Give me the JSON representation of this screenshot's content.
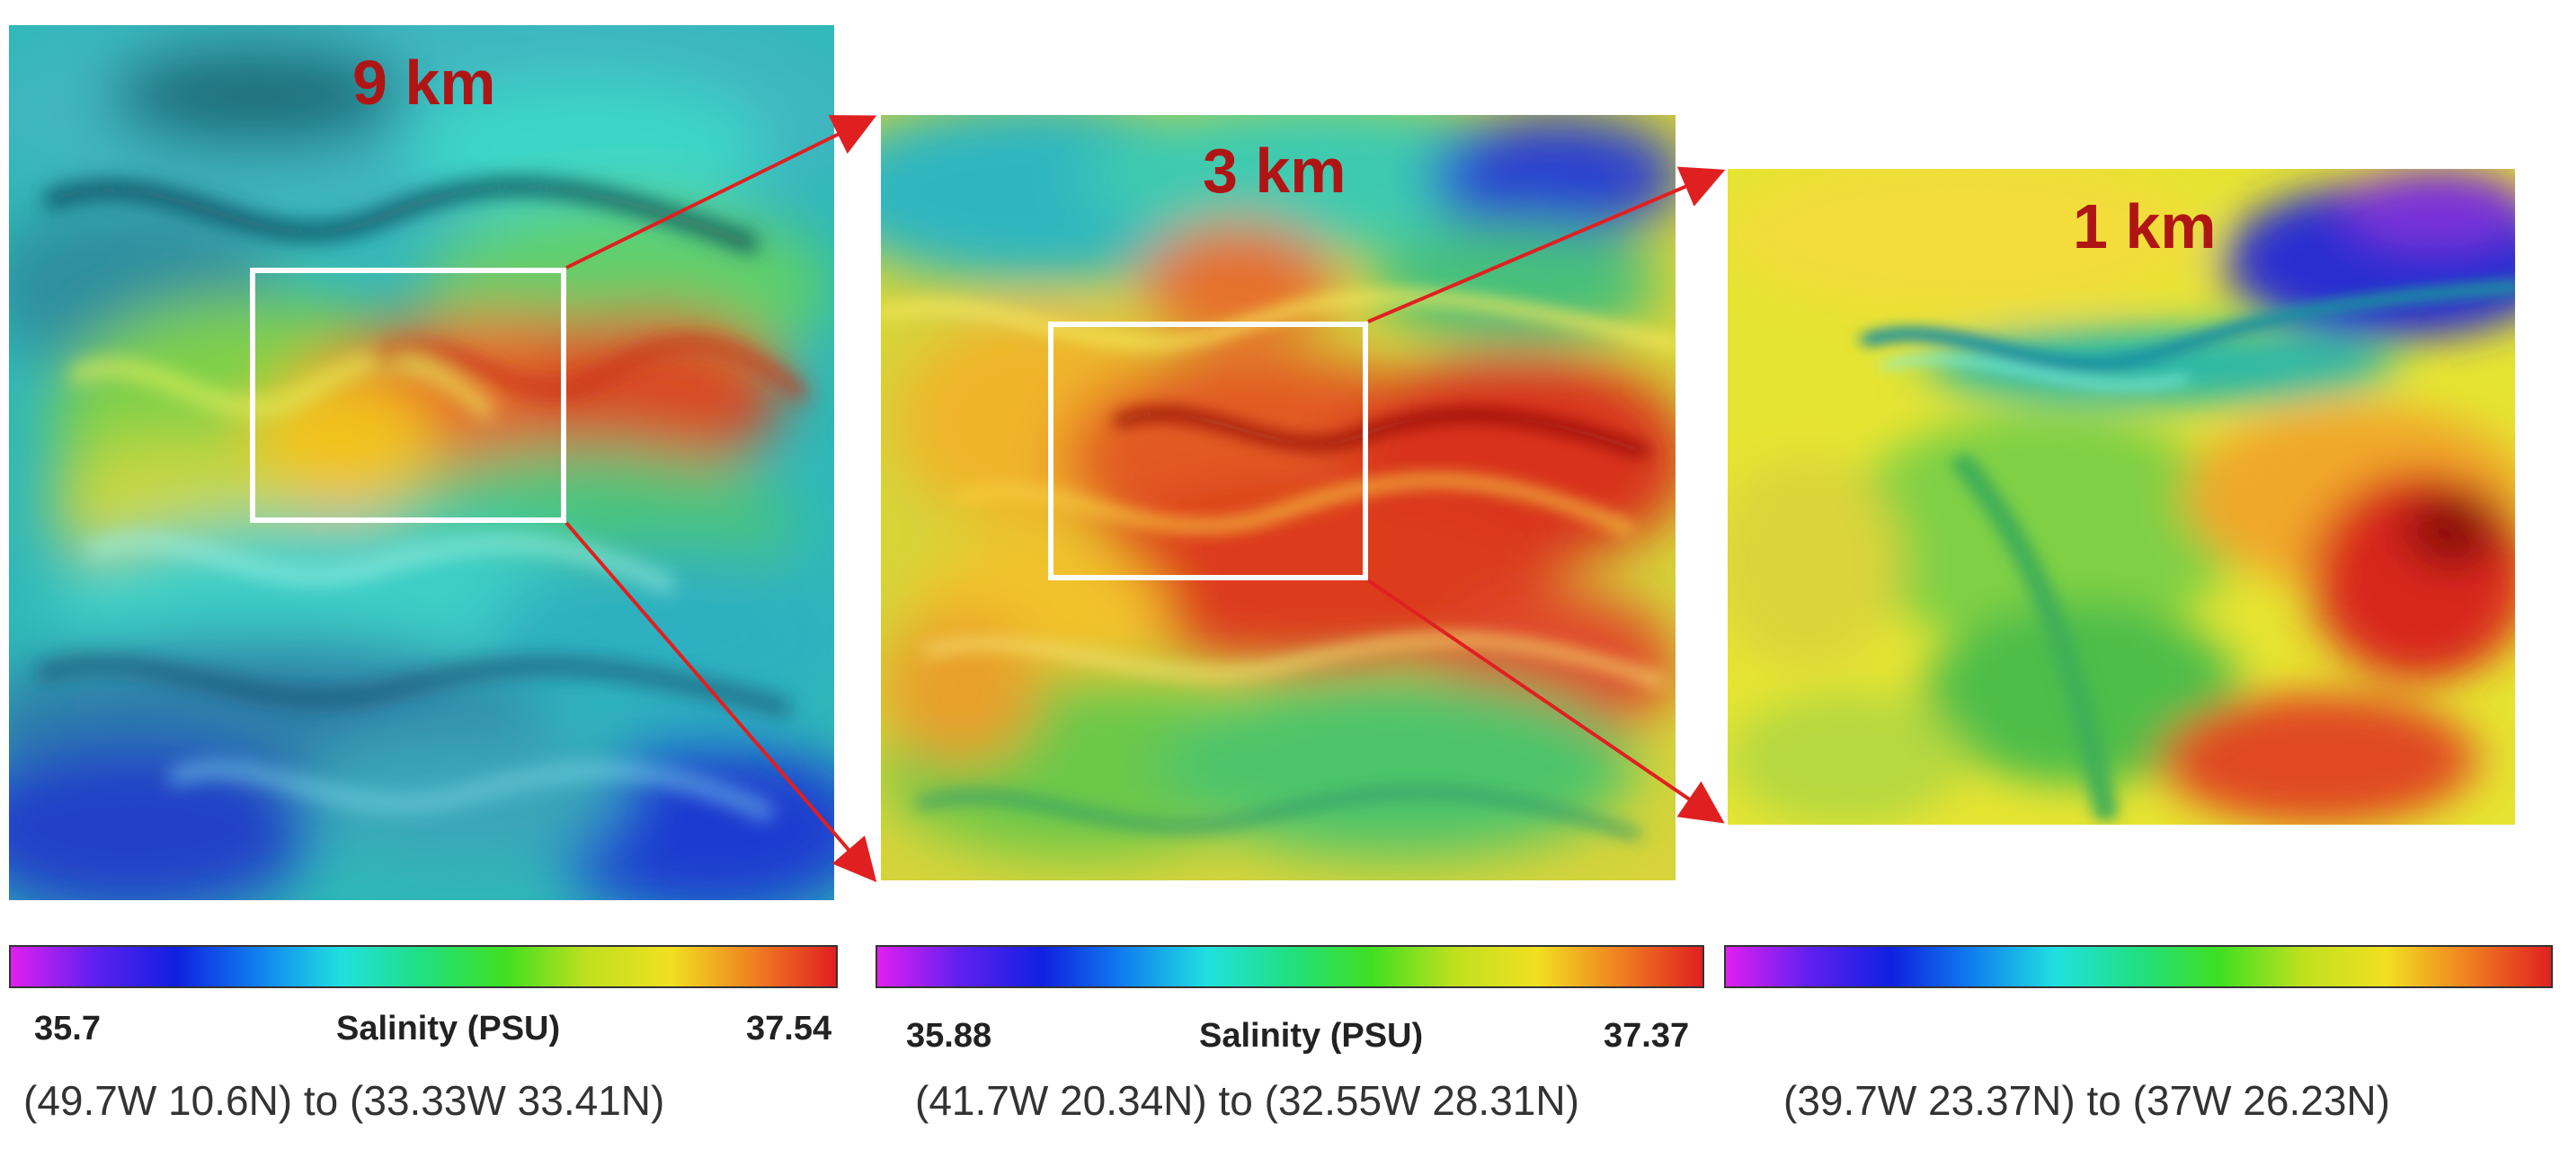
{
  "colors": {
    "label_red": "#b01515",
    "arrow_red": "#e02020",
    "box_white": "#ffffff"
  },
  "panels": [
    {
      "resolution_label": "9 km",
      "colorbar_min": "35.7",
      "colorbar_title": "Salinity (PSU)",
      "colorbar_max": "37.54",
      "extent_text": "(49.7W  10.6N) to (33.33W 33.41N)"
    },
    {
      "resolution_label": "3 km",
      "colorbar_min": "35.88",
      "colorbar_title": "Salinity (PSU)",
      "colorbar_max": "37.37",
      "extent_text": "(41.7W  20.34N) to (32.55W 28.31N)"
    },
    {
      "resolution_label": "1 km",
      "colorbar_min": "",
      "colorbar_title": "",
      "colorbar_max": "",
      "extent_text": "(39.7W  23.37N) to  (37W  26.23N)"
    }
  ]
}
